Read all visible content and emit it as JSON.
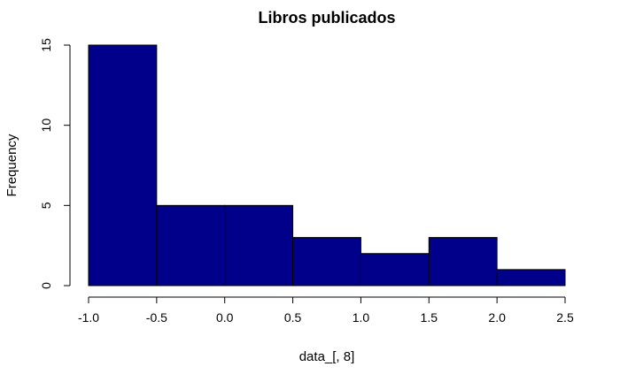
{
  "chart_data": {
    "type": "bar",
    "title": "Libros publicados",
    "xlabel": "data_[, 8]",
    "ylabel": "Frequency",
    "bins": [
      {
        "from": -1.0,
        "to": -0.5,
        "count": 15
      },
      {
        "from": -0.5,
        "to": 0.0,
        "count": 5
      },
      {
        "from": 0.0,
        "to": 0.5,
        "count": 5
      },
      {
        "from": 0.5,
        "to": 1.0,
        "count": 3
      },
      {
        "from": 1.0,
        "to": 1.5,
        "count": 2
      },
      {
        "from": 1.5,
        "to": 2.0,
        "count": 3
      },
      {
        "from": 2.0,
        "to": 2.5,
        "count": 1
      }
    ],
    "xlim": [
      -1.0,
      2.5
    ],
    "ylim": [
      0,
      15
    ],
    "xticks": [
      "-1.0",
      "-0.5",
      "0.0",
      "0.5",
      "1.0",
      "1.5",
      "2.0",
      "2.5"
    ],
    "yticks": [
      "0",
      "5",
      "10",
      "15"
    ],
    "bar_color": "#00008B",
    "grid": false
  }
}
